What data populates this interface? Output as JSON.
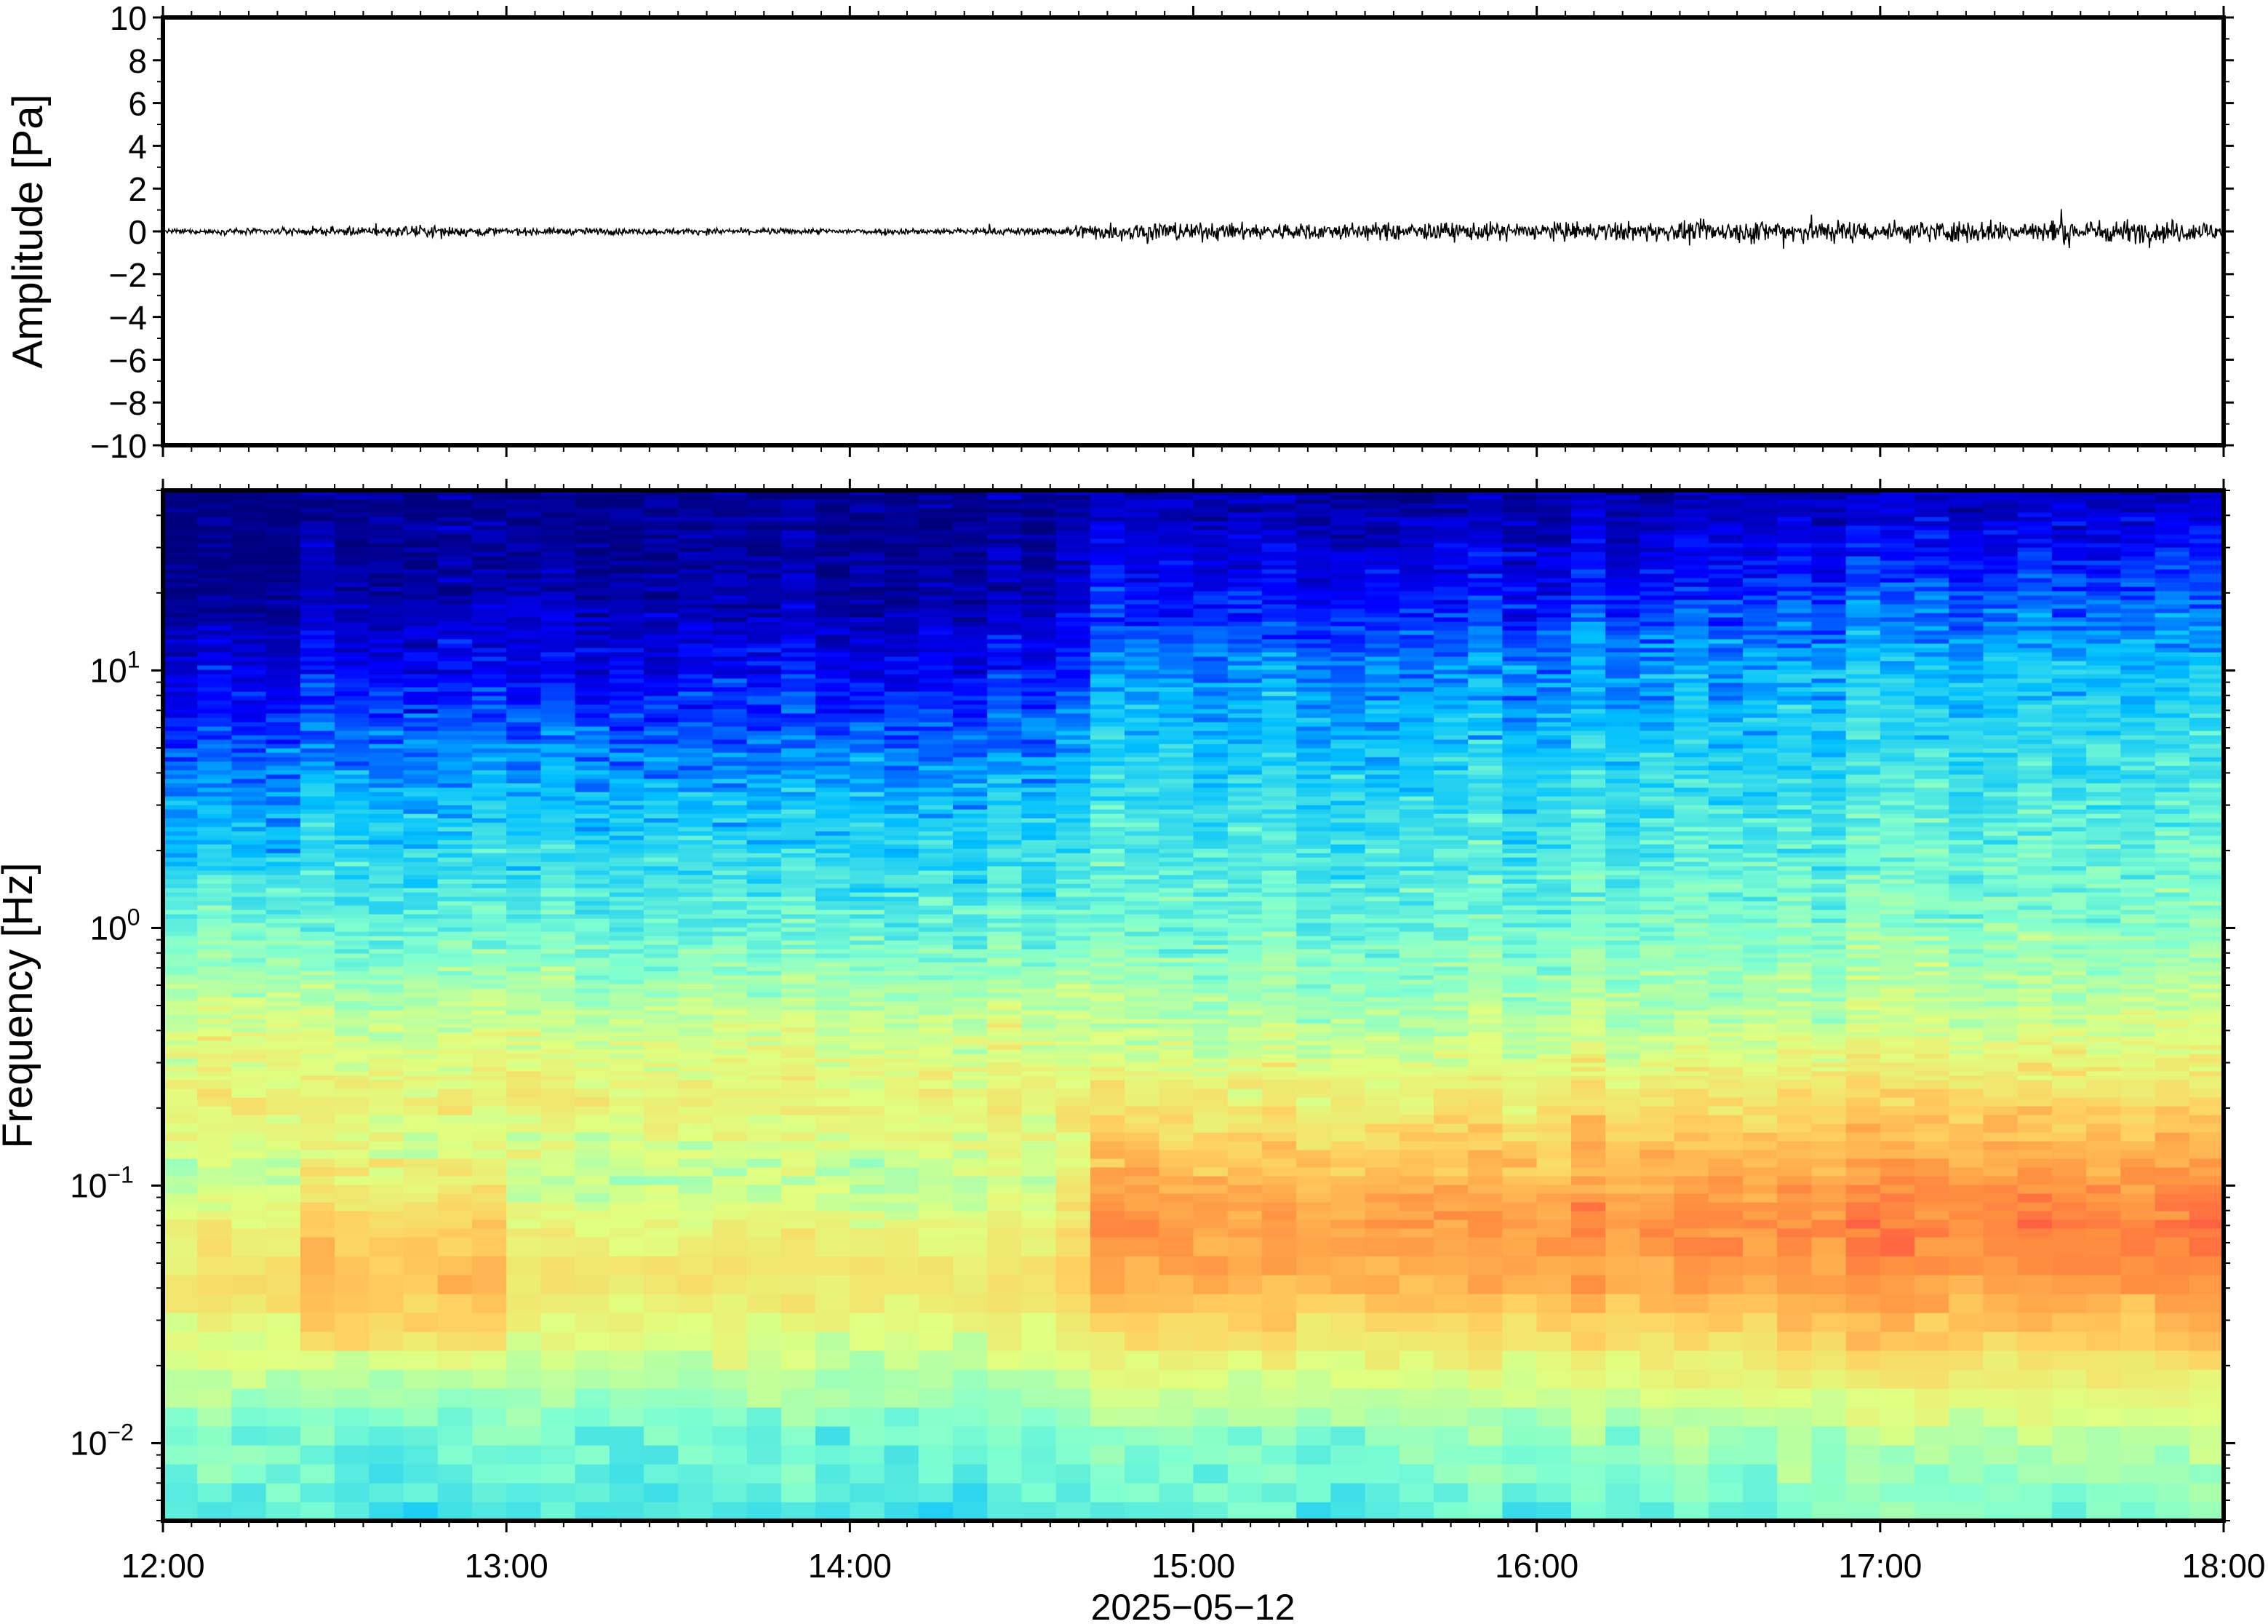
{
  "chart_data": [
    {
      "type": "line",
      "title": "",
      "ylabel": "Amplitude [Pa]",
      "ylim": [
        -10,
        10
      ],
      "yticks": [
        10,
        8,
        6,
        4,
        2,
        0,
        -2,
        -4,
        -6,
        -8,
        -10
      ],
      "ytick_labels": [
        "10",
        "8",
        "6",
        "4",
        "2",
        "0",
        "−2",
        "−4",
        "−6",
        "−8",
        "−10"
      ],
      "xlim": [
        "12:00",
        "18:00"
      ],
      "series": [
        {
          "color": "#000000",
          "envelope_x_hours": [
            12.0,
            12.3,
            12.5,
            12.8,
            13.0,
            13.5,
            14.0,
            14.5,
            14.6,
            14.65,
            14.9,
            15.0,
            15.5,
            16.0,
            16.5,
            16.75,
            17.0,
            17.5,
            18.0
          ],
          "envelope_amplitude_pa": [
            0.2,
            0.25,
            0.35,
            0.5,
            0.3,
            0.25,
            0.25,
            0.3,
            0.35,
            0.6,
            0.9,
            0.7,
            0.7,
            0.75,
            0.8,
            1.1,
            0.85,
            0.95,
            0.9
          ]
        }
      ]
    },
    {
      "type": "heatmap",
      "title": "",
      "ylabel": "Frequency [Hz]",
      "xlabel": "2025−05−12",
      "y_scale": "log",
      "ylim": [
        0.005,
        50
      ],
      "yticks": [
        10,
        1,
        0.1,
        0.01
      ],
      "ytick_labels": [
        {
          "base": "10",
          "exp": "1"
        },
        {
          "base": "10",
          "exp": "0"
        },
        {
          "base": "10",
          "exp": "−1"
        },
        {
          "base": "10",
          "exp": "−2"
        }
      ],
      "xlim": [
        "12:00",
        "18:00"
      ],
      "xticks": [
        "12:00",
        "13:00",
        "14:00",
        "15:00",
        "16:00",
        "17:00",
        "18:00"
      ],
      "colormap": "jet",
      "colormap_colors": [
        "#00007f",
        "#0000ff",
        "#00bfff",
        "#80ffd0",
        "#e0ff80",
        "#ffd060",
        "#ff9040",
        "#ff4040"
      ],
      "observed_profile": {
        "freq_hz": [
          0.005,
          0.01,
          0.02,
          0.04,
          0.07,
          0.1,
          0.2,
          0.4,
          1,
          3,
          10,
          20,
          50
        ],
        "level_12h": [
          0.38,
          0.42,
          0.55,
          0.66,
          0.6,
          0.52,
          0.62,
          0.55,
          0.4,
          0.3,
          0.14,
          0.05,
          0.02
        ],
        "level_15h": [
          0.4,
          0.46,
          0.62,
          0.8,
          0.84,
          0.78,
          0.65,
          0.52,
          0.42,
          0.35,
          0.25,
          0.15,
          0.04
        ],
        "level_17h": [
          0.44,
          0.52,
          0.68,
          0.85,
          0.88,
          0.84,
          0.7,
          0.55,
          0.45,
          0.38,
          0.3,
          0.2,
          0.07
        ]
      }
    }
  ]
}
